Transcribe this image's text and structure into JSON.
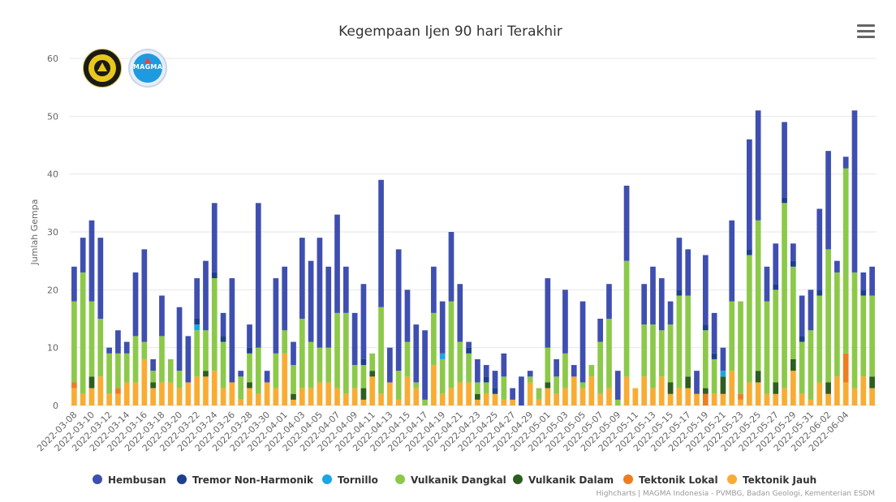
{
  "title": "Kegempaan Ijen 90 hari Terakhir",
  "credits": "Highcharts | MAGMA Indonesia - PVMBG, Badan Geologi, Kementerian ESDM",
  "menu_icon": "hamburger-menu-icon",
  "logos": {
    "left": "esdm-logo",
    "right": "magma-logo",
    "right_text": "MAGMA"
  },
  "colors": {
    "Hembusan": "#3f4fb0",
    "Tremor Non-Harmonik": "#1d3f8c",
    "Tornillo": "#1aa6e6",
    "Vulkanik Dangkal": "#8cc94a",
    "Vulkanik Dalam": "#2e5e1f",
    "Tektonik Lokal": "#ee7d21",
    "Tektonik Jauh": "#f9ac33",
    "grid": "#e6e6e6",
    "axis_text": "#666666",
    "title": "#333333"
  },
  "chart_data": {
    "type": "bar",
    "stacked": true,
    "title": "Kegempaan Ijen 90 hari Terakhir",
    "ylabel": "Jumlah Gempa",
    "xlabel": "",
    "ylim": [
      0,
      60
    ],
    "yticks": [
      0,
      10,
      20,
      30,
      40,
      50,
      60
    ],
    "grid": true,
    "legend_position": "bottom",
    "start_date": "2022-03-08",
    "end_date": "2022-06-05",
    "xtick_labels": [
      "2022-03-08",
      "2022-03-10",
      "2022-03-12",
      "2022-03-14",
      "2022-03-16",
      "2022-03-18",
      "2022-03-20",
      "2022-03-22",
      "2022-03-24",
      "2022-03-26",
      "2022-03-28",
      "2022-03-30",
      "2022-04-01",
      "2022-04-03",
      "2022-04-05",
      "2022-04-07",
      "2022-04-09",
      "2022-04-11",
      "2022-04-13",
      "2022-04-15",
      "2022-04-17",
      "2022-04-19",
      "2022-04-21",
      "2022-04-23",
      "2022-04-25",
      "2022-04-27",
      "2022-04-29",
      "2022-05-01",
      "2022-05-03",
      "2022-05-05",
      "2022-05-07",
      "2022-05-09",
      "2022-05-11",
      "2022-05-13",
      "2022-05-15",
      "2022-05-17",
      "2022-05-19",
      "2022-05-21",
      "2022-05-23",
      "2022-05-25",
      "2022-05-27",
      "2022-05-29",
      "2022-05-31",
      "2022-06-02",
      "2022-06-04"
    ],
    "series": [
      {
        "name": "Tektonik Jauh",
        "values": [
          3,
          2,
          3,
          5,
          2,
          2,
          4,
          4,
          8,
          3,
          4,
          4,
          3,
          4,
          5,
          5,
          6,
          3,
          4,
          1,
          3,
          2,
          4,
          3,
          9,
          1,
          3,
          3,
          4,
          4,
          3,
          2,
          3,
          1,
          5,
          2,
          4,
          1,
          5,
          3,
          0,
          7,
          2,
          3,
          4,
          4,
          1,
          2,
          2,
          1,
          1,
          0,
          4,
          1,
          3,
          2,
          3,
          5,
          3,
          5,
          2,
          3,
          0,
          5,
          3,
          5,
          3,
          5,
          2,
          3,
          3,
          2,
          0,
          2,
          2,
          6,
          1,
          4,
          4,
          2,
          2,
          3,
          6,
          2,
          1,
          4,
          2,
          5,
          4,
          3,
          5,
          3
        ]
      },
      {
        "name": "Tektonik Lokal",
        "values": [
          1,
          0,
          0,
          0,
          0,
          1,
          0,
          0,
          0,
          0,
          0,
          0,
          0,
          0,
          0,
          0,
          0,
          0,
          0,
          0,
          0,
          0,
          0,
          0,
          0,
          0,
          0,
          0,
          0,
          0,
          0,
          0,
          0,
          0,
          0,
          0,
          0,
          0,
          0,
          0,
          0,
          0,
          0,
          0,
          0,
          0,
          0,
          0,
          0,
          0,
          0,
          0,
          0,
          0,
          0,
          0,
          0,
          0,
          0,
          0,
          0,
          0,
          0,
          0,
          0,
          0,
          0,
          0,
          0,
          0,
          0,
          0,
          2,
          0,
          0,
          0,
          1,
          0,
          0,
          0,
          0,
          0,
          0,
          0,
          0,
          0,
          0,
          0,
          5,
          0,
          0,
          0
        ]
      },
      {
        "name": "Vulkanik Dalam",
        "values": [
          0,
          0,
          2,
          0,
          0,
          0,
          0,
          0,
          0,
          1,
          0,
          0,
          0,
          0,
          0,
          1,
          0,
          0,
          0,
          0,
          1,
          0,
          0,
          0,
          0,
          1,
          0,
          0,
          0,
          0,
          0,
          0,
          0,
          2,
          1,
          0,
          0,
          0,
          0,
          0,
          0,
          0,
          0,
          0,
          0,
          0,
          1,
          0,
          0,
          0,
          0,
          0,
          0,
          0,
          1,
          0,
          0,
          0,
          0,
          0,
          0,
          0,
          0,
          0,
          0,
          0,
          0,
          0,
          2,
          0,
          2,
          0,
          1,
          0,
          3,
          0,
          0,
          0,
          2,
          0,
          2,
          0,
          2,
          0,
          0,
          0,
          2,
          0,
          0,
          0,
          0,
          2
        ]
      },
      {
        "name": "Vulkanik Dangkal",
        "values": [
          14,
          21,
          13,
          10,
          7,
          6,
          5,
          8,
          3,
          2,
          8,
          4,
          3,
          0,
          8,
          7,
          16,
          8,
          0,
          4,
          5,
          8,
          0,
          6,
          4,
          5,
          12,
          8,
          6,
          6,
          13,
          14,
          4,
          4,
          3,
          15,
          0,
          5,
          6,
          1,
          1,
          9,
          6,
          15,
          7,
          5,
          2,
          2,
          0,
          4,
          0,
          0,
          1,
          2,
          6,
          3,
          6,
          0,
          1,
          2,
          9,
          12,
          1,
          20,
          0,
          9,
          11,
          8,
          10,
          16,
          14,
          0,
          10,
          6,
          0,
          12,
          16,
          22,
          26,
          16,
          16,
          32,
          16,
          9,
          12,
          15,
          23,
          18,
          32,
          20,
          14,
          14
        ]
      },
      {
        "name": "Tornillo",
        "values": [
          0,
          0,
          0,
          0,
          0,
          0,
          0,
          0,
          0,
          0,
          0,
          0,
          0,
          0,
          1,
          0,
          0,
          0,
          0,
          0,
          0,
          0,
          0,
          0,
          0,
          0,
          0,
          0,
          0,
          0,
          0,
          0,
          0,
          0,
          0,
          0,
          0,
          0,
          0,
          0,
          0,
          0,
          1,
          0,
          0,
          0,
          0,
          0,
          0,
          0,
          0,
          0,
          0,
          0,
          0,
          0,
          0,
          0,
          0,
          0,
          0,
          0,
          0,
          0,
          0,
          0,
          0,
          0,
          0,
          0,
          0,
          0,
          0,
          0,
          1,
          0,
          0,
          0,
          0,
          0,
          0,
          0,
          0,
          0,
          0,
          0,
          0,
          0,
          0,
          0,
          0,
          0
        ]
      },
      {
        "name": "Tremor Non-Harmonik",
        "values": [
          0,
          0,
          0,
          0,
          0,
          0,
          0,
          0,
          0,
          0,
          0,
          0,
          0,
          0,
          1,
          0,
          1,
          1,
          0,
          0,
          1,
          0,
          0,
          0,
          0,
          0,
          0,
          0,
          0,
          0,
          0,
          0,
          0,
          1,
          0,
          0,
          0,
          0,
          0,
          0,
          0,
          0,
          0,
          0,
          0,
          1,
          0,
          1,
          1,
          0,
          0,
          0,
          0,
          0,
          0,
          0,
          0,
          0,
          0,
          0,
          0,
          0,
          0,
          0,
          0,
          0,
          0,
          0,
          0,
          1,
          0,
          0,
          1,
          1,
          0,
          0,
          0,
          1,
          0,
          0,
          1,
          1,
          1,
          1,
          0,
          1,
          0,
          0,
          0,
          0,
          1,
          0
        ]
      },
      {
        "name": "Hembusan",
        "values": [
          6,
          6,
          14,
          14,
          1,
          4,
          2,
          11,
          16,
          2,
          7,
          0,
          11,
          8,
          7,
          12,
          12,
          4,
          18,
          1,
          4,
          25,
          2,
          13,
          11,
          4,
          14,
          14,
          19,
          14,
          17,
          8,
          9,
          13,
          0,
          22,
          6,
          21,
          9,
          10,
          12,
          8,
          9,
          12,
          10,
          1,
          4,
          2,
          3,
          4,
          2,
          5,
          1,
          0,
          12,
          3,
          11,
          2,
          14,
          0,
          4,
          6,
          5,
          13,
          0,
          7,
          10,
          9,
          4,
          9,
          8,
          4,
          12,
          7,
          4,
          14,
          0,
          19,
          19,
          6,
          7,
          13,
          3,
          7,
          7,
          14,
          17,
          2,
          2,
          28,
          3,
          5
        ]
      }
    ]
  },
  "legend": [
    {
      "name": "Hembusan"
    },
    {
      "name": "Tremor Non-Harmonik"
    },
    {
      "name": "Tornillo"
    },
    {
      "name": "Vulkanik Dangkal"
    },
    {
      "name": "Vulkanik Dalam"
    },
    {
      "name": "Tektonik Lokal"
    },
    {
      "name": "Tektonik Jauh"
    }
  ]
}
